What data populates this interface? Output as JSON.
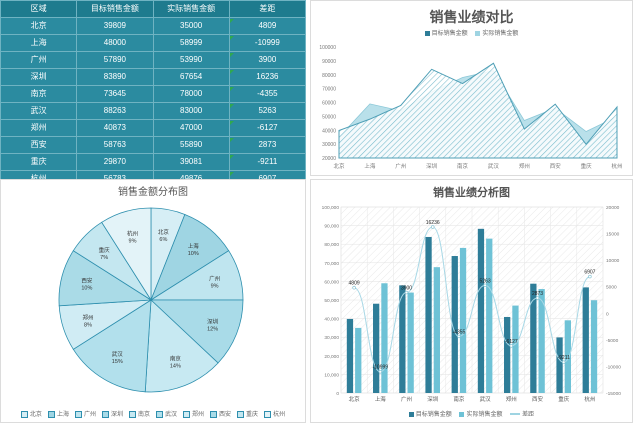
{
  "table": {
    "headers": [
      "区域",
      "目标销售金额",
      "实际销售金额",
      "差距"
    ],
    "rows": [
      [
        "北京",
        "39809",
        "35000",
        "4809"
      ],
      [
        "上海",
        "48000",
        "58999",
        "-10999"
      ],
      [
        "广州",
        "57890",
        "53990",
        "3900"
      ],
      [
        "深圳",
        "83890",
        "67654",
        "16236"
      ],
      [
        "南京",
        "73645",
        "78000",
        "-4355"
      ],
      [
        "武汉",
        "88263",
        "83000",
        "5263"
      ],
      [
        "郑州",
        "40873",
        "47000",
        "-6127"
      ],
      [
        "西安",
        "58763",
        "55890",
        "2873"
      ],
      [
        "重庆",
        "29870",
        "39081",
        "-9211"
      ],
      [
        "杭州",
        "56783",
        "49876",
        "6907"
      ]
    ]
  },
  "colors": {
    "header_bg": "#1e7b8e",
    "row_bg": "#2b8ba0",
    "target": "#2e7d98",
    "actual": "#6ec2d6",
    "pie_edge": "#2e8fae"
  },
  "chart_data": [
    {
      "type": "area",
      "title": "销售业绩对比",
      "categories": [
        "北京",
        "上海",
        "广州",
        "深圳",
        "南京",
        "武汉",
        "郑州",
        "西安",
        "重庆",
        "杭州"
      ],
      "series": [
        {
          "name": "目标销售金额",
          "values": [
            39809,
            48000,
            57890,
            83890,
            73645,
            88263,
            40873,
            58763,
            29870,
            56783
          ]
        },
        {
          "name": "实际销售金额",
          "values": [
            35000,
            58999,
            53990,
            67654,
            78000,
            83000,
            47000,
            55890,
            39081,
            49876
          ]
        }
      ],
      "ylim": [
        20000,
        100000
      ],
      "yticks": [
        "100000",
        "90000",
        "80000",
        "70000",
        "60000",
        "50000",
        "40000",
        "30000",
        "20000"
      ],
      "legend": "top"
    },
    {
      "type": "pie",
      "title": "销售金额分布图",
      "categories": [
        "北京",
        "上海",
        "广州",
        "深圳",
        "南京",
        "武汉",
        "郑州",
        "西安",
        "重庆",
        "杭州"
      ],
      "values": [
        6,
        10,
        9,
        12,
        14,
        15,
        8,
        10,
        7,
        9
      ],
      "labels": [
        "6%",
        "10%",
        "9%",
        "12%",
        "14%",
        "15%",
        "8%",
        "10%",
        "7%",
        "9%"
      ],
      "legend": "bottom"
    },
    {
      "type": "bar",
      "title": "销售业绩分析图",
      "categories": [
        "北京",
        "上海",
        "广州",
        "深圳",
        "南京",
        "武汉",
        "郑州",
        "西安",
        "重庆",
        "杭州"
      ],
      "series": [
        {
          "name": "目标销售金额",
          "values": [
            39809,
            48000,
            57890,
            83890,
            73645,
            88263,
            40873,
            58763,
            29870,
            56783
          ]
        },
        {
          "name": "实际销售金额",
          "values": [
            35000,
            58999,
            53990,
            67654,
            78000,
            83000,
            47000,
            55890,
            39081,
            49876
          ]
        },
        {
          "name": "差距",
          "type": "line",
          "axis": "right",
          "values": [
            4809,
            -10999,
            3900,
            16236,
            -4355,
            5263,
            -6127,
            2873,
            -9211,
            6907
          ]
        }
      ],
      "ylim": [
        0,
        100000
      ],
      "y2lim": [
        -15000,
        20000
      ],
      "yticks": [
        "100,000",
        "90,000",
        "80,000",
        "70,000",
        "60,000",
        "50,000",
        "40,000",
        "30,000",
        "20,000",
        "10,000",
        "0"
      ],
      "y2ticks": [
        "20000",
        "15000",
        "10000",
        "5000",
        "0",
        "-5000",
        "-10000",
        "-15000"
      ],
      "value_labels": [
        "4809",
        "-10999",
        "3900",
        "16236",
        "-4355",
        "5263",
        "-6127",
        "2873",
        "-9211",
        "6907"
      ],
      "legend": "bottom"
    }
  ]
}
